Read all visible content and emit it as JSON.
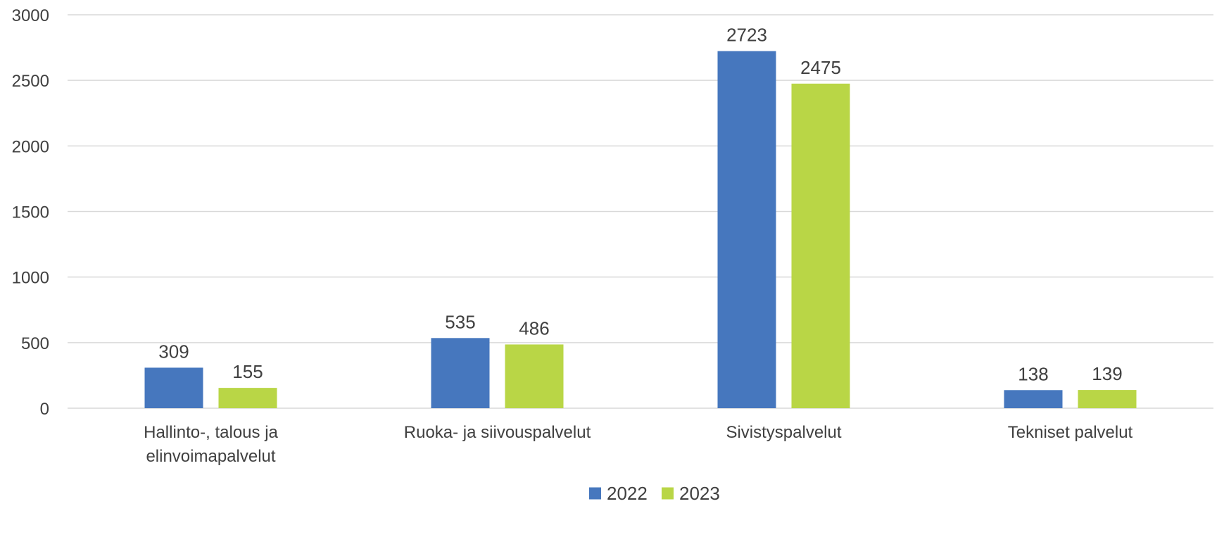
{
  "chart_data": {
    "type": "bar",
    "categories": [
      [
        "Hallinto-, talous ja",
        "elinvoimapalvelut"
      ],
      [
        "Ruoka- ja siivouspalvelut"
      ],
      [
        "Sivistyspalvelut"
      ],
      [
        "Tekniset palvelut"
      ]
    ],
    "series": [
      {
        "name": "2022",
        "color": "#4677be",
        "values": [
          309,
          535,
          2723,
          138
        ]
      },
      {
        "name": "2023",
        "color": "#b9d646",
        "values": [
          155,
          486,
          2475,
          139
        ]
      }
    ],
    "ylim": [
      0,
      3000
    ],
    "yticks": [
      0,
      500,
      1000,
      1500,
      2000,
      2500,
      3000
    ],
    "grid": true,
    "legend_position": "bottom-center",
    "data_labels": true
  }
}
